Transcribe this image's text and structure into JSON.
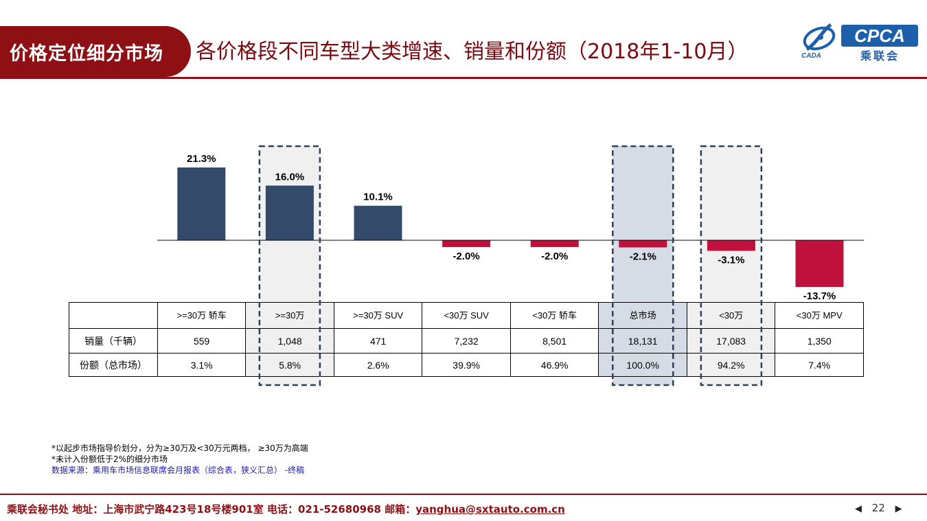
{
  "header": {
    "tag": "价格定位细分市场",
    "title": "各价格段不同车型大类增速、销量和份额（2018年1-10月）"
  },
  "logo": {
    "text": "CPCA",
    "cn": "乘联会",
    "mark": "CADA",
    "color": "#1d5fa8"
  },
  "colors": {
    "positive": "#344a6b",
    "negative": "#c0113c",
    "accent": "#8e0f14"
  },
  "chart_data": {
    "type": "bar",
    "categories": [
      ">=30万 轿车",
      ">=30万",
      ">=30万 SUV",
      "<30万 SUV",
      "<30万 轿车",
      "总市场",
      "<30万",
      "<30万 MPV"
    ],
    "values": [
      21.3,
      16.0,
      10.1,
      -2.0,
      -2.0,
      -2.1,
      -3.1,
      -13.7
    ],
    "value_labels": [
      "21.3%",
      "16.0%",
      "10.1%",
      "-2.0%",
      "-2.0%",
      "-2.1%",
      "-3.1%",
      "-13.7%"
    ],
    "highlighted": [
      1,
      5,
      6
    ]
  },
  "table": {
    "header": [
      ">=30万 轿车",
      ">=30万",
      ">=30万 SUV",
      "<30万 SUV",
      "<30万 轿车",
      "总市场",
      "<30万",
      "<30万 MPV"
    ],
    "rows": [
      {
        "label": "销量（千辆）",
        "cells": [
          "559",
          "1,048",
          "471",
          "7,232",
          "8,501",
          "18,131",
          "17,083",
          "1,350"
        ]
      },
      {
        "label": "份额（总市场）",
        "cells": [
          "3.1%",
          "5.8%",
          "2.6%",
          "39.9%",
          "46.9%",
          "100.0%",
          "94.2%",
          "7.4%"
        ]
      }
    ]
  },
  "notes": {
    "line1": "*以起步市场指导价划分，分为≥30万及<30万元两档，   ≥30万为高端",
    "line2": "*未计入份额低于2%的细分市场",
    "source": "数据来源：乘用车市场信息联席会月报表（综合表，狭义汇总）  -终稿"
  },
  "footer": {
    "text": "乘联会秘书处  地址：上海市武宁路423号18号楼901室  电话：021-52680968  邮箱：",
    "email": "yanghua@sxtauto.com.cn",
    "page": "22",
    "prev": "◀",
    "next": "▶"
  }
}
